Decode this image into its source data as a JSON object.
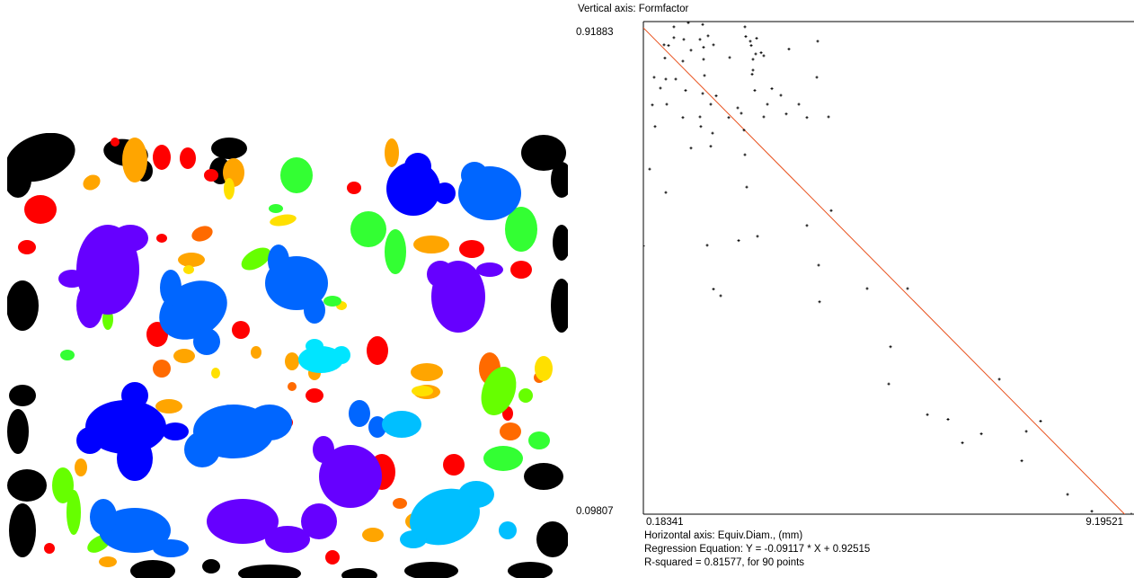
{
  "chart_data": {
    "type": "scatter",
    "y_label": "Vertical axis: Formfactor",
    "x_label": "Horizontal axis: Equiv.Diam., (mm)",
    "annotations": [
      "Regression Equation: Y = -0.09117 * X + 0.92515",
      "R-squared = 0.81577, for 90 points"
    ],
    "regression": {
      "slope": -0.09117,
      "intercept": 0.92515,
      "color": "#e8501c"
    },
    "color": "#000000",
    "xlim": [
      0.18341,
      9.19521
    ],
    "xticks": [
      0.18341,
      9.19521
    ],
    "ylim": [
      0.09807,
      0.91883
    ],
    "yticks": [
      0.91883,
      0.09807
    ],
    "x": [
      0.747,
      1.013,
      1.279,
      2.059,
      0.747,
      0.93,
      1.229,
      1.378,
      2.075,
      2.158,
      2.275,
      0.565,
      0.648,
      1.063,
      1.295,
      1.478,
      2.175,
      2.258,
      2.358,
      2.872,
      3.403,
      0.581,
      0.913,
      1.295,
      1.777,
      2.208,
      2.407,
      2.208,
      0.382,
      0.598,
      0.781,
      1.312,
      2.192,
      3.387,
      0.498,
      0.963,
      1.279,
      1.528,
      2.241,
      2.557,
      2.723,
      0.349,
      0.615,
      1.428,
      1.926,
      2.474,
      3.055,
      0.913,
      1.229,
      1.76,
      1.992,
      2.407,
      2.822,
      3.204,
      3.603,
      0.399,
      1.245,
      2.042,
      1.461,
      1.063,
      1.428,
      2.059,
      0.299,
      2.092,
      0.598,
      3.652,
      3.204,
      2.291,
      1.943,
      1.362,
      0.18341,
      3.42,
      1.478,
      1.611,
      3.437,
      4.316,
      5.063,
      4.748,
      4.715,
      6.757,
      5.429,
      5.81,
      7.52,
      6.425,
      7.255,
      6.076,
      7.172,
      8.018,
      8.466,
      9.19521
    ],
    "values": [
      0.91,
      0.917,
      0.914,
      0.91,
      0.892,
      0.889,
      0.889,
      0.895,
      0.894,
      0.886,
      0.891,
      0.88,
      0.879,
      0.871,
      0.876,
      0.88,
      0.879,
      0.865,
      0.867,
      0.873,
      0.886,
      0.858,
      0.853,
      0.856,
      0.859,
      0.856,
      0.862,
      0.838,
      0.826,
      0.823,
      0.823,
      0.829,
      0.831,
      0.826,
      0.808,
      0.804,
      0.799,
      0.795,
      0.804,
      0.807,
      0.796,
      0.78,
      0.781,
      0.781,
      0.775,
      0.781,
      0.781,
      0.759,
      0.76,
      0.759,
      0.766,
      0.76,
      0.765,
      0.759,
      0.76,
      0.744,
      0.744,
      0.738,
      0.733,
      0.708,
      0.711,
      0.697,
      0.673,
      0.643,
      0.634,
      0.604,
      0.579,
      0.561,
      0.554,
      0.546,
      0.545,
      0.513,
      0.473,
      0.462,
      0.452,
      0.474,
      0.474,
      0.377,
      0.315,
      0.323,
      0.264,
      0.256,
      0.253,
      0.232,
      0.236,
      0.217,
      0.187,
      0.131,
      0.103,
      0.09807
    ]
  }
}
